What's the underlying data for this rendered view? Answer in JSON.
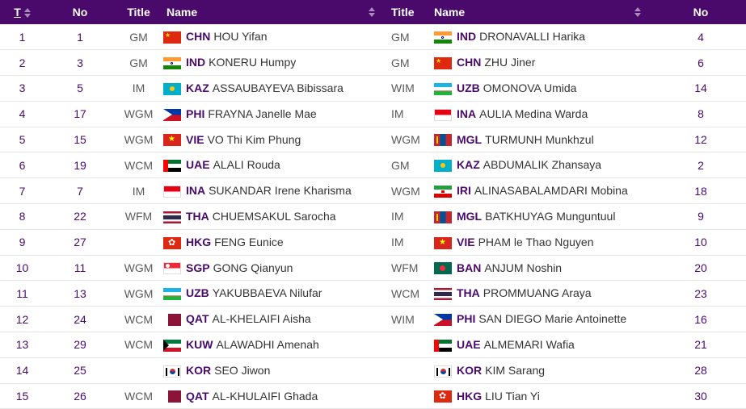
{
  "header": {
    "t_label": "T",
    "no_label": "No",
    "title_label": "Title",
    "name_label": "Name",
    "title2_label": "Title",
    "name2_label": "Name",
    "no2_label": "No"
  },
  "rows": [
    {
      "t": "1",
      "no": "1",
      "title": "GM",
      "fed": "CHN",
      "name": "HOU Yifan",
      "title2": "GM",
      "fed2": "IND",
      "name2": "DRONAVALLI Harika",
      "no2": "4"
    },
    {
      "t": "2",
      "no": "3",
      "title": "GM",
      "fed": "IND",
      "name": "KONERU Humpy",
      "title2": "GM",
      "fed2": "CHN",
      "name2": "ZHU Jiner",
      "no2": "6"
    },
    {
      "t": "3",
      "no": "5",
      "title": "IM",
      "fed": "KAZ",
      "name": "ASSAUBAYEVA Bibissara",
      "title2": "WIM",
      "fed2": "UZB",
      "name2": "OMONOVA Umida",
      "no2": "14"
    },
    {
      "t": "4",
      "no": "17",
      "title": "WGM",
      "fed": "PHI",
      "name": "FRAYNA Janelle Mae",
      "title2": "IM",
      "fed2": "INA",
      "name2": "AULIA Medina Warda",
      "no2": "8"
    },
    {
      "t": "5",
      "no": "15",
      "title": "WGM",
      "fed": "VIE",
      "name": "VO Thi Kim Phung",
      "title2": "WGM",
      "fed2": "MGL",
      "name2": "TURMUNH Munkhzul",
      "no2": "12"
    },
    {
      "t": "6",
      "no": "19",
      "title": "WCM",
      "fed": "UAE",
      "name": "ALALI Rouda",
      "title2": "GM",
      "fed2": "KAZ",
      "name2": "ABDUMALIK Zhansaya",
      "no2": "2"
    },
    {
      "t": "7",
      "no": "7",
      "title": "IM",
      "fed": "INA",
      "name": "SUKANDAR Irene Kharisma",
      "title2": "WGM",
      "fed2": "IRI",
      "name2": "ALINASABALAMDARI Mobina",
      "no2": "18"
    },
    {
      "t": "8",
      "no": "22",
      "title": "WFM",
      "fed": "THA",
      "name": "CHUEMSAKUL Sarocha",
      "title2": "IM",
      "fed2": "MGL",
      "name2": "BATKHUYAG Munguntuul",
      "no2": "9"
    },
    {
      "t": "9",
      "no": "27",
      "title": "",
      "fed": "HKG",
      "name": "FENG Eunice",
      "title2": "IM",
      "fed2": "VIE",
      "name2": "PHAM le Thao Nguyen",
      "no2": "10"
    },
    {
      "t": "10",
      "no": "11",
      "title": "WGM",
      "fed": "SGP",
      "name": "GONG Qianyun",
      "title2": "WFM",
      "fed2": "BAN",
      "name2": "ANJUM Noshin",
      "no2": "20"
    },
    {
      "t": "11",
      "no": "13",
      "title": "WGM",
      "fed": "UZB",
      "name": "YAKUBBAEVA Nilufar",
      "title2": "WCM",
      "fed2": "THA",
      "name2": "PROMMUANG Araya",
      "no2": "23"
    },
    {
      "t": "12",
      "no": "24",
      "title": "WCM",
      "fed": "QAT",
      "name": "AL-KHELAIFI Aisha",
      "title2": "WIM",
      "fed2": "PHI",
      "name2": "SAN DIEGO Marie Antoinette",
      "no2": "16"
    },
    {
      "t": "13",
      "no": "29",
      "title": "WCM",
      "fed": "KUW",
      "name": "ALAWADHI Amenah",
      "title2": "",
      "fed2": "UAE",
      "name2": "ALMEMARI Wafia",
      "no2": "21"
    },
    {
      "t": "14",
      "no": "25",
      "title": "",
      "fed": "KOR",
      "name": "SEO Jiwon",
      "title2": "",
      "fed2": "KOR",
      "name2": "KIM Sarang",
      "no2": "28"
    },
    {
      "t": "15",
      "no": "26",
      "title": "WCM",
      "fed": "QAT",
      "name": "AL-KHULAIFI Ghada",
      "title2": "",
      "fed2": "HKG",
      "name2": "LIU Tian Yi",
      "no2": "30"
    }
  ],
  "colors": {
    "header_bg": "#4a0a6b",
    "accent": "#4a0a6b",
    "text": "#333333"
  }
}
